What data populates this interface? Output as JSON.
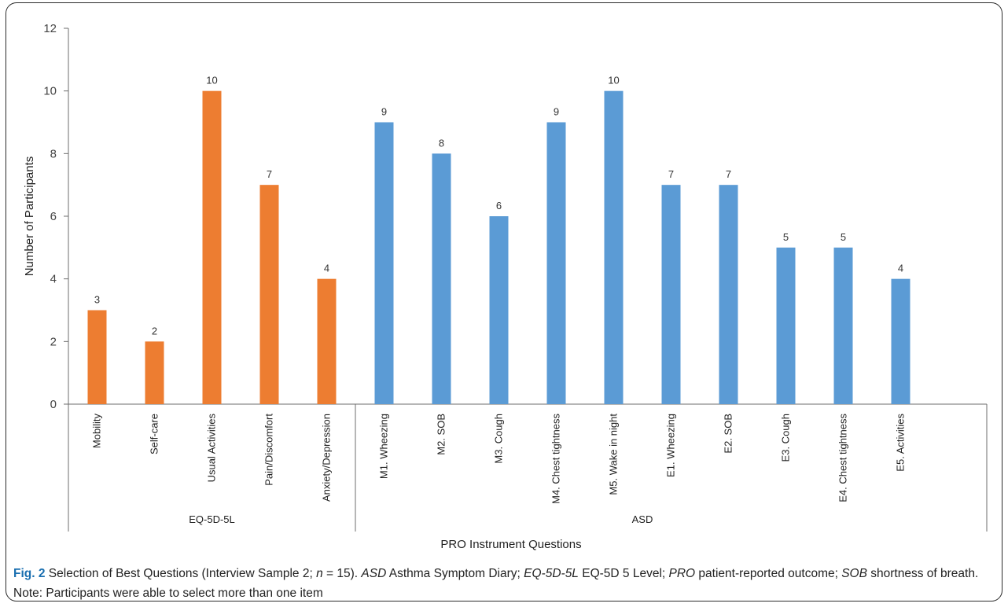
{
  "chart_data": {
    "type": "bar",
    "ylabel": "Number of Participants",
    "xlabel": "PRO Instrument Questions",
    "ylim": [
      0,
      12
    ],
    "yticks": [
      "0",
      "2",
      "4",
      "6",
      "8",
      "10",
      "12"
    ],
    "grid": false,
    "groups": [
      {
        "name": "EQ-5D-5L",
        "color": "#ED7D31",
        "categories": [
          "Mobility",
          "Self-care",
          "Usual Activities",
          "Pain/Discomfort",
          "Anxiety/Depression"
        ],
        "values": [
          3,
          2,
          10,
          7,
          4
        ]
      },
      {
        "name": "ASD",
        "color": "#5B9BD5",
        "categories": [
          "M1. Wheezing",
          "M2. SOB",
          "M3. Cough",
          "M4. Chest tightness",
          "M5. Wake in night",
          "E1. Wheezing",
          "E2. SOB",
          "E3. Cough",
          "E4. Chest tightness",
          "E5. Activities"
        ],
        "values": [
          9,
          8,
          6,
          9,
          10,
          7,
          7,
          5,
          5,
          4
        ]
      }
    ]
  },
  "caption": {
    "fig_label": "Fig. 2",
    "seg1": " Selection of Best Questions (Interview Sample 2; ",
    "n_italic": "n",
    "seg2": " = 15). ",
    "asd_abbr": "ASD",
    "asd_def": " Asthma Symptom Diary; ",
    "eq_abbr": "EQ-5D-5L",
    "eq_def": " EQ-5D 5 Level; ",
    "pro_abbr": "PRO",
    "pro_def": " patient-reported outcome; ",
    "sob_abbr": "SOB",
    "sob_def": " shortness of breath. Note: Participants were able to select more than one item"
  }
}
